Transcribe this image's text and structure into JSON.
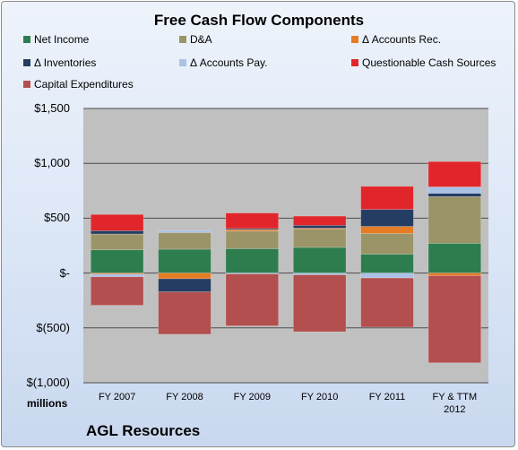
{
  "company": "AGL Resources",
  "units_label": "millions",
  "chart_data": {
    "type": "bar",
    "stacked": true,
    "title": "Free Cash Flow Components",
    "xlabel": "",
    "ylabel": "",
    "ylim": [
      -1000,
      1500
    ],
    "yticks": [
      {
        "value": 1500,
        "label": "$1,500"
      },
      {
        "value": 1000,
        "label": "$1,000"
      },
      {
        "value": 500,
        "label": "$500"
      },
      {
        "value": 0,
        "label": "$-"
      },
      {
        "value": -500,
        "label": "$(500)"
      },
      {
        "value": -1000,
        "label": "$(1,000)"
      }
    ],
    "categories": [
      "FY 2007",
      "FY 2008",
      "FY 2009",
      "FY 2010",
      "FY 2011",
      "FY & TTM\n2012"
    ],
    "legend_position": "top",
    "series": [
      {
        "name": "Net Income",
        "color": "#2e7d4f",
        "values": [
          212,
          217,
          222,
          234,
          172,
          271
        ]
      },
      {
        "name": "D&A",
        "color": "#9b9468",
        "values": [
          144,
          152,
          160,
          167,
          189,
          426
        ]
      },
      {
        "name": "Δ Accounts Rec.",
        "color": "#e57c24",
        "values": [
          -10,
          -52,
          14,
          8,
          64,
          -24
        ]
      },
      {
        "name": "Δ Inventories",
        "color": "#253d63",
        "values": [
          30,
          -120,
          10,
          26,
          155,
          30
        ]
      },
      {
        "name": "Δ Accounts Pay.",
        "color": "#a9c2e6",
        "values": [
          -24,
          18,
          -8,
          -16,
          -45,
          58
        ]
      },
      {
        "name": "Questionable Cash Sources",
        "color": "#e1262b",
        "values": [
          148,
          0,
          141,
          84,
          210,
          231
        ]
      },
      {
        "name": "Capital Expenditures",
        "color": "#b34f4f",
        "values": [
          -260,
          -386,
          -474,
          -519,
          -448,
          -794
        ]
      }
    ]
  }
}
